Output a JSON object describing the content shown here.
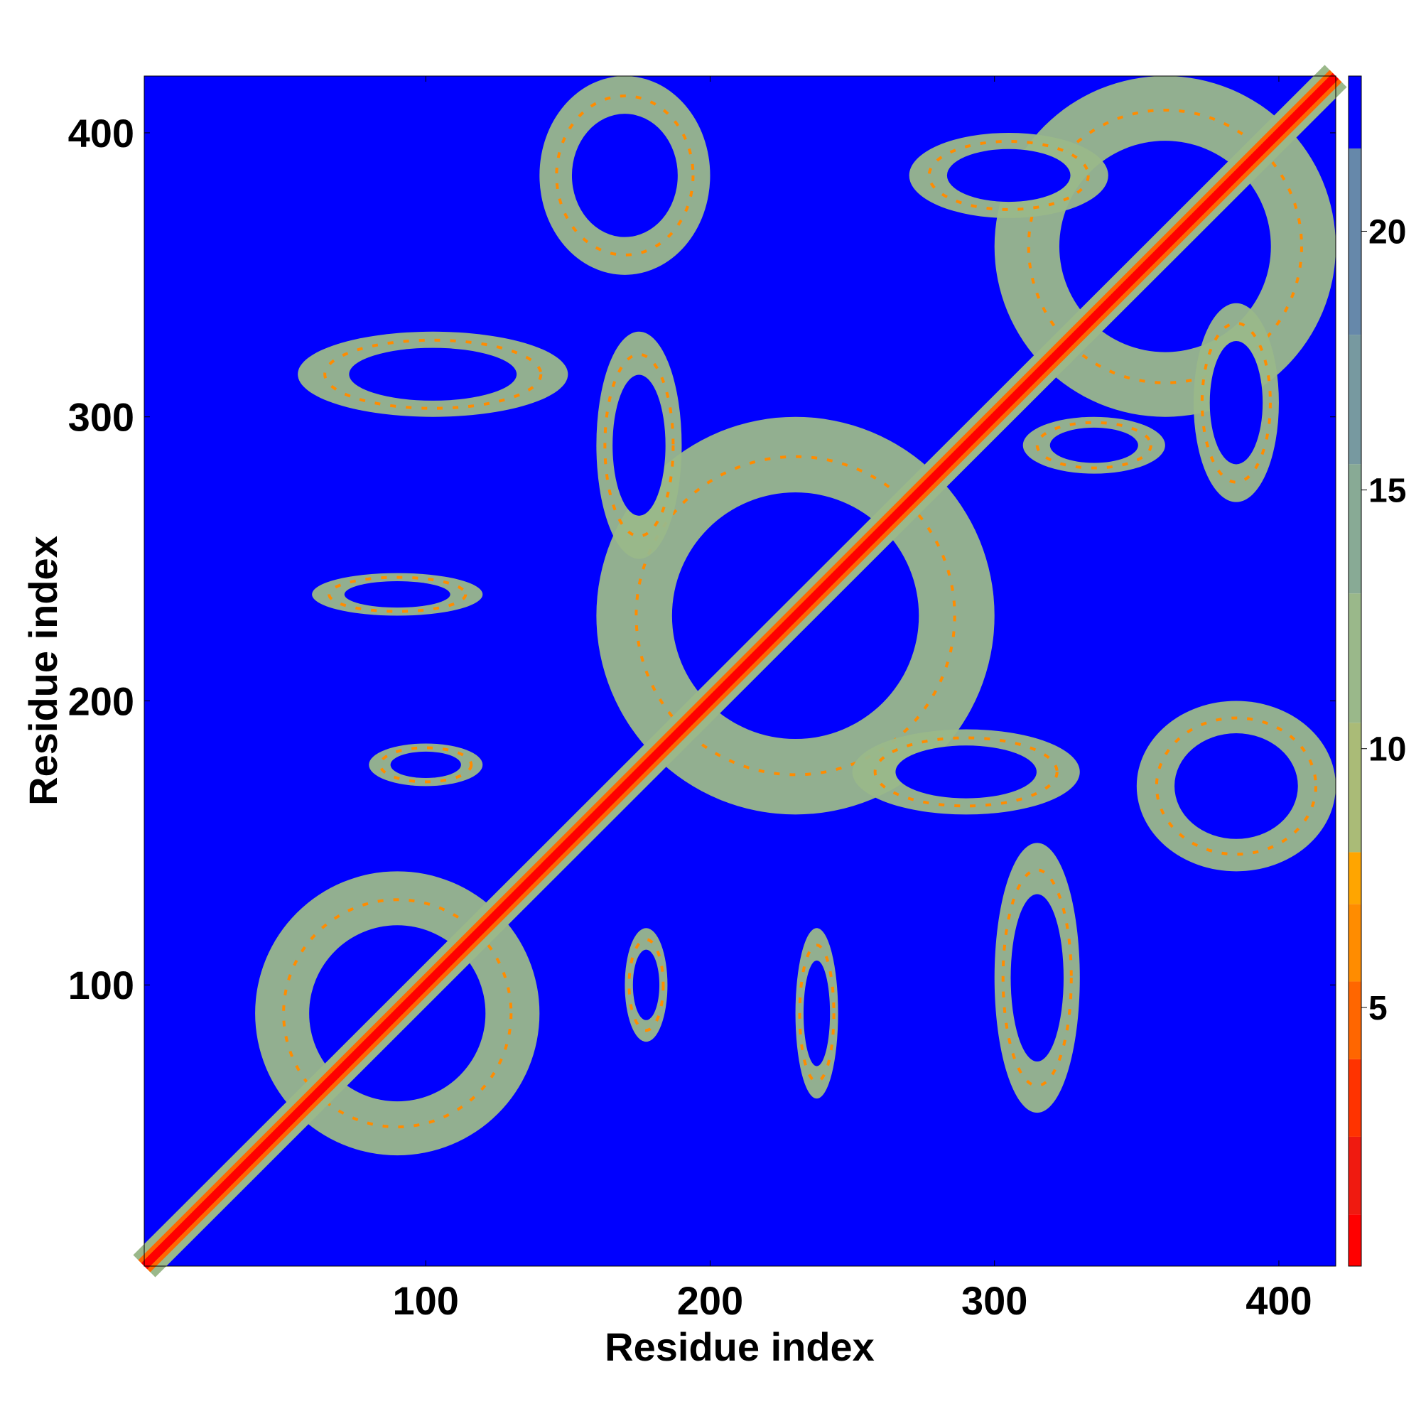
{
  "chart_data": {
    "type": "heatmap",
    "title": "",
    "xlabel": "Residue index",
    "ylabel": "Residue index",
    "xlim": [
      1,
      420
    ],
    "ylim": [
      1,
      420
    ],
    "x_ticks": [
      100,
      200,
      300,
      400
    ],
    "y_ticks": [
      100,
      200,
      300,
      400
    ],
    "x_tick_labels": [
      "100",
      "200",
      "300",
      "400"
    ],
    "y_tick_labels": [
      "100",
      "200",
      "300",
      "400"
    ],
    "colorbar": {
      "range": [
        0,
        23
      ],
      "ticks": [
        5,
        10,
        15,
        20
      ],
      "tick_labels": [
        "5",
        "10",
        "15",
        "20"
      ],
      "levels": [
        {
          "from": 0,
          "to": 1.0,
          "color": "#ff0000"
        },
        {
          "from": 1.0,
          "to": 2.5,
          "color": "#f01a10"
        },
        {
          "from": 2.5,
          "to": 4.0,
          "color": "#ff3300"
        },
        {
          "from": 4.0,
          "to": 5.5,
          "color": "#ff6600"
        },
        {
          "from": 5.5,
          "to": 7.0,
          "color": "#ff8c00"
        },
        {
          "from": 7.0,
          "to": 8.0,
          "color": "#ffa500"
        },
        {
          "from": 8.0,
          "to": 10.5,
          "color": "#aabb77"
        },
        {
          "from": 10.5,
          "to": 13.0,
          "color": "#9ab88a"
        },
        {
          "from": 13.0,
          "to": 15.5,
          "color": "#88aa95"
        },
        {
          "from": 15.5,
          "to": 18.0,
          "color": "#7799a0"
        },
        {
          "from": 18.0,
          "to": 21.6,
          "color": "#6688aa"
        },
        {
          "from": 21.6,
          "to": 23.0,
          "color": "#0000ff"
        }
      ]
    },
    "background_color": "#0000ff",
    "diagonal": {
      "from": 1,
      "to": 420,
      "color": "#ff0000",
      "halo_color": "#ff6600"
    },
    "contact_regions": [
      {
        "x": [
          40,
          140
        ],
        "y": [
          40,
          140
        ],
        "center_level": "#ff8c00"
      },
      {
        "x": [
          160,
          300
        ],
        "y": [
          160,
          300
        ],
        "center_level": "#ff8c00"
      },
      {
        "x": [
          300,
          420
        ],
        "y": [
          300,
          420
        ],
        "center_level": "#ff8c00"
      },
      {
        "x": [
          140,
          200
        ],
        "y": [
          350,
          420
        ],
        "center_level": "#ff8c00"
      },
      {
        "x": [
          350,
          420
        ],
        "y": [
          140,
          200
        ],
        "center_level": "#ff8c00"
      },
      {
        "x": [
          55,
          150
        ],
        "y": [
          300,
          330
        ],
        "center_level": "#ff8c00"
      },
      {
        "x": [
          300,
          330
        ],
        "y": [
          55,
          150
        ],
        "center_level": "#ff8c00"
      },
      {
        "x": [
          160,
          190
        ],
        "y": [
          250,
          330
        ],
        "center_level": "#ff8c00"
      },
      {
        "x": [
          250,
          330
        ],
        "y": [
          160,
          190
        ],
        "center_level": "#ff8c00"
      },
      {
        "x": [
          310,
          360
        ],
        "y": [
          280,
          300
        ],
        "center_level": "#ff8c00"
      },
      {
        "x": [
          60,
          120
        ],
        "y": [
          230,
          245
        ],
        "center_level": "#ff8c00"
      },
      {
        "x": [
          80,
          120
        ],
        "y": [
          170,
          185
        ],
        "center_level": "#ff8c00"
      },
      {
        "x": [
          230,
          245
        ],
        "y": [
          60,
          120
        ],
        "center_level": "#ff8c00"
      },
      {
        "x": [
          170,
          185
        ],
        "y": [
          80,
          120
        ],
        "center_level": "#ff8c00"
      },
      {
        "x": [
          270,
          340
        ],
        "y": [
          370,
          400
        ],
        "center_level": "#ff8c00"
      },
      {
        "x": [
          370,
          400
        ],
        "y": [
          270,
          340
        ],
        "center_level": "#ff8c00"
      }
    ]
  }
}
